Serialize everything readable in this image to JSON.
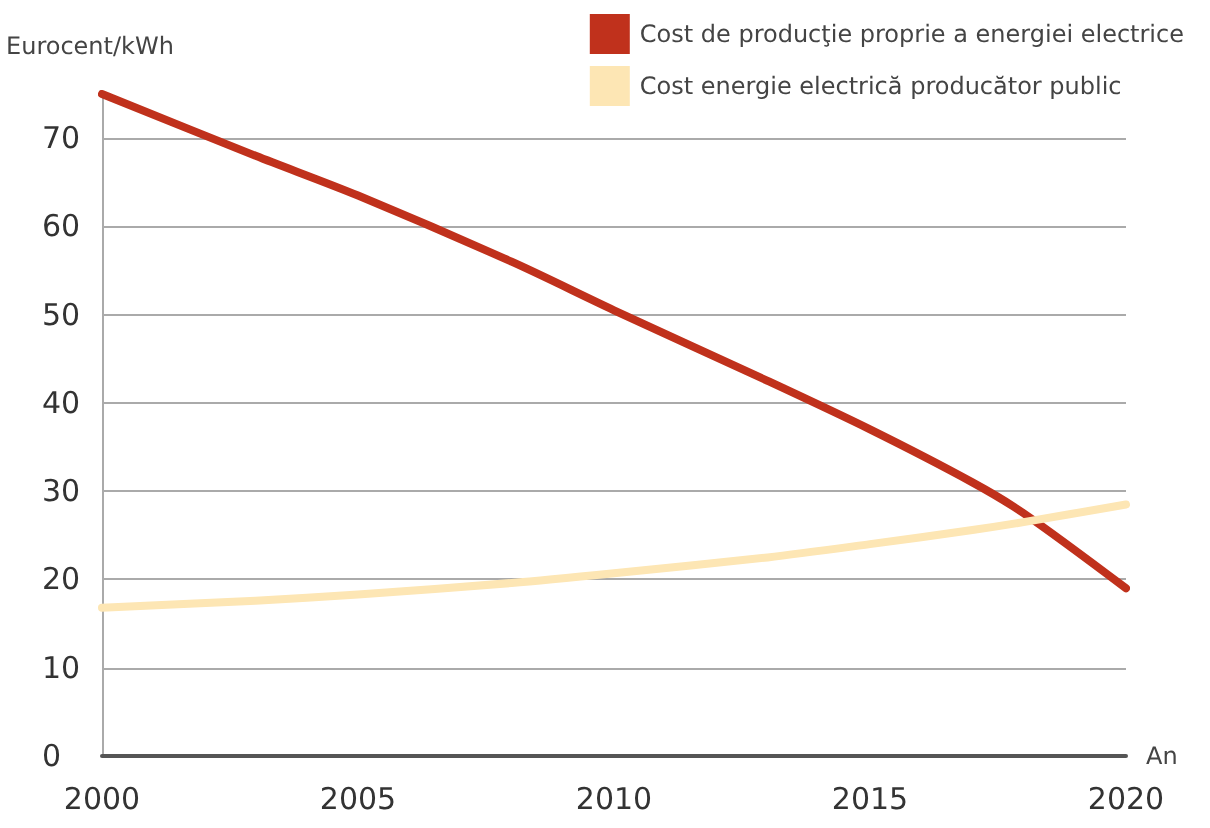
{
  "chart_data": {
    "type": "line",
    "xlabel": "An",
    "ylabel": "Eurocent/kWh",
    "x": [
      2000,
      2003,
      2005,
      2008,
      2010,
      2013,
      2015,
      2017,
      2018,
      2020
    ],
    "series": [
      {
        "name": "Cost de producţie proprie a energiei electrice",
        "color": "#c0311c",
        "values": [
          75,
          68,
          63.5,
          56,
          50.5,
          42.5,
          37,
          31,
          27.5,
          19
        ]
      },
      {
        "name": "Cost energie electrică producător public",
        "color": "#fde6b4",
        "values": [
          16.8,
          17.6,
          18.3,
          19.6,
          20.7,
          22.5,
          24,
          25.6,
          26.5,
          28.5
        ]
      }
    ],
    "xlim": [
      2000,
      2020
    ],
    "xticks": [
      2000,
      2005,
      2010,
      2015,
      2020
    ],
    "ylim": [
      0,
      75
    ],
    "yticks": [
      0,
      10,
      20,
      30,
      40,
      50,
      60,
      70
    ],
    "grid": "y",
    "legend": "top right",
    "marker": "none",
    "line_style": "solid"
  }
}
